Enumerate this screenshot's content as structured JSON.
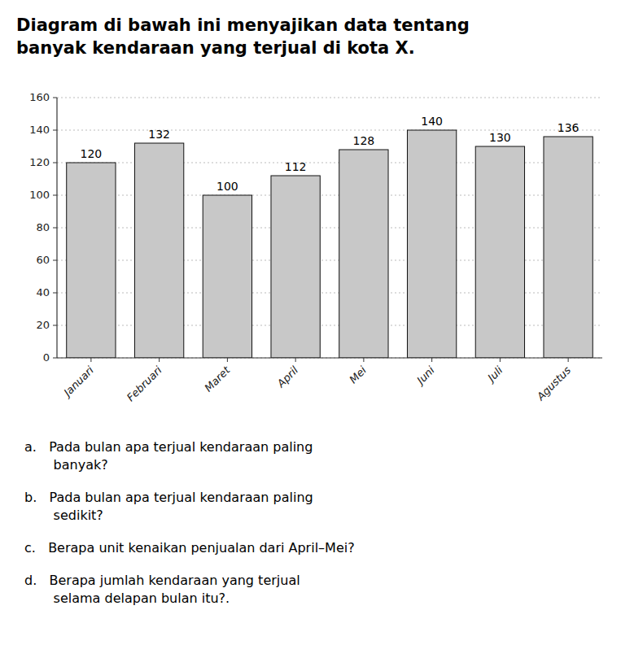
{
  "chart_data": {
    "type": "bar",
    "title": "Diagram di bawah ini menyajikan data tentang\nbanyak kendaraan yang terjual di kota X.",
    "categories": [
      "Januari",
      "Februari",
      "Maret",
      "April",
      "Mei",
      "Juni",
      "Juli",
      "Agustus"
    ],
    "values": [
      120,
      132,
      100,
      112,
      128,
      140,
      130,
      136
    ],
    "color": "#c8c8c8",
    "ylim": [
      0,
      160
    ],
    "yticks": [
      0,
      20,
      40,
      60,
      80,
      100,
      120,
      140,
      160
    ],
    "grid": true,
    "data_labels": true,
    "annotations": [
      "a.   Pada bulan apa terjual kendaraan paling\n       banyak?",
      "b.   Pada bulan apa terjual kendaraan paling\n       sedikit?",
      "c.   Berapa unit kenaikan penjualan dari April–Mei?",
      "d.   Berapa jumlah kendaraan yang terjual\n       selama delapan bulan itu?."
    ]
  }
}
